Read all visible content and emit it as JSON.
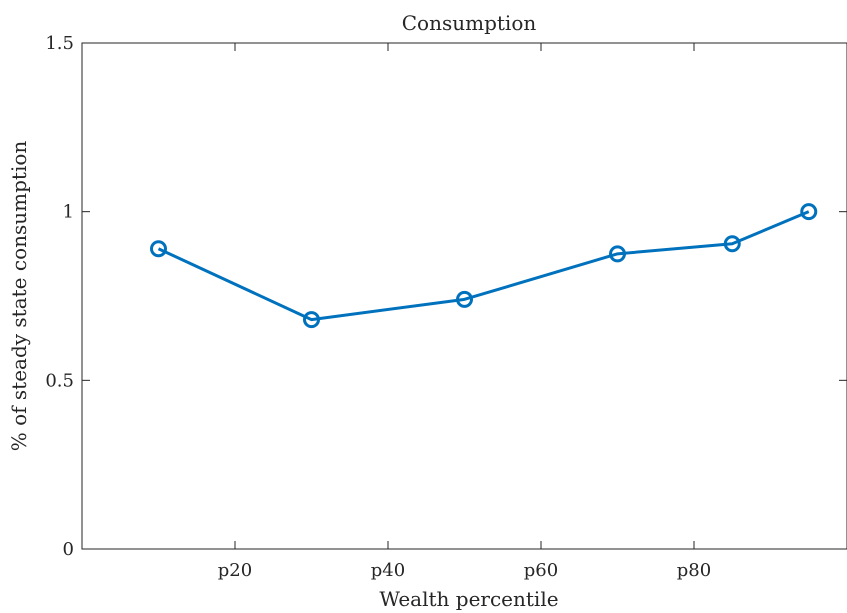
{
  "chart_data": {
    "type": "line",
    "title": "Consumption",
    "xlabel": "Wealth percentile",
    "ylabel": "% of steady state consumption",
    "xlim": [
      0,
      100
    ],
    "ylim": [
      0,
      1.5
    ],
    "x_ticks": [
      {
        "value": 20,
        "label": "p20"
      },
      {
        "value": 40,
        "label": "p40"
      },
      {
        "value": 60,
        "label": "p60"
      },
      {
        "value": 80,
        "label": "p80"
      }
    ],
    "y_ticks": [
      {
        "value": 0,
        "label": "0"
      },
      {
        "value": 0.5,
        "label": "0.5"
      },
      {
        "value": 1,
        "label": "1"
      },
      {
        "value": 1.5,
        "label": "1.5"
      }
    ],
    "grid": false,
    "series": [
      {
        "color": "#0072BD",
        "marker": "circle",
        "x": [
          10,
          30,
          50,
          70,
          85,
          95
        ],
        "y": [
          0.89,
          0.68,
          0.74,
          0.875,
          0.905,
          1.0
        ]
      }
    ]
  }
}
